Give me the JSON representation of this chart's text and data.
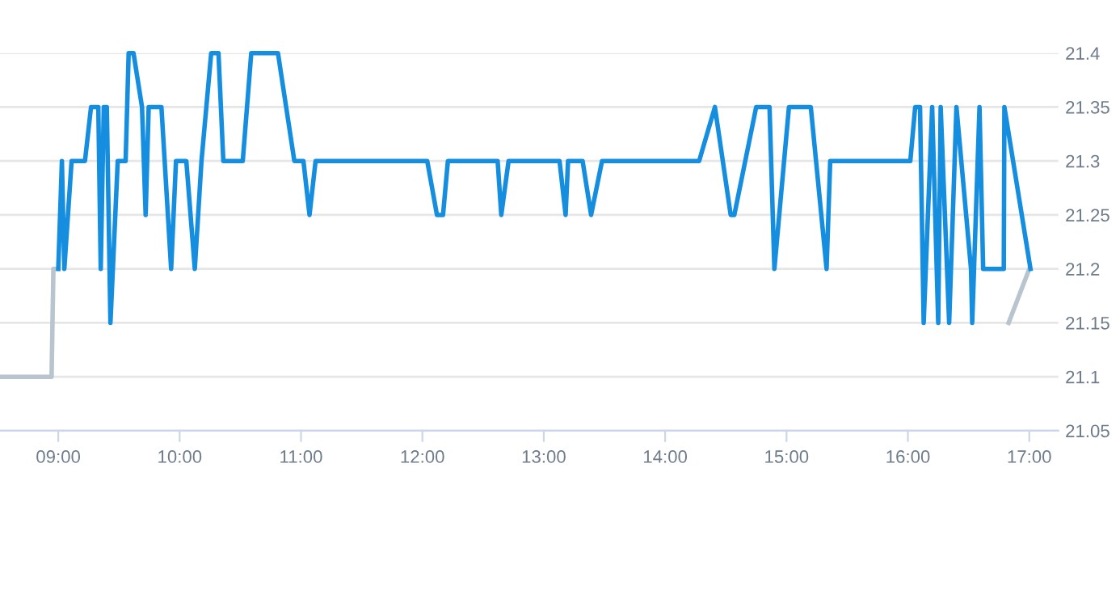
{
  "chart_data": {
    "type": "line",
    "xlim": [
      8.52,
      17.24
    ],
    "ylim": [
      21.05,
      21.4
    ],
    "xticks": [
      {
        "value": 9,
        "label": "09:00"
      },
      {
        "value": 10,
        "label": "10:00"
      },
      {
        "value": 11,
        "label": "11:00"
      },
      {
        "value": 12,
        "label": "12:00"
      },
      {
        "value": 13,
        "label": "13:00"
      },
      {
        "value": 14,
        "label": "14:00"
      },
      {
        "value": 15,
        "label": "15:00"
      },
      {
        "value": 16,
        "label": "16:00"
      },
      {
        "value": 17,
        "label": "17:00"
      }
    ],
    "yticks": [
      21.05,
      21.1,
      21.15,
      21.2,
      21.25,
      21.3,
      21.35,
      21.4
    ],
    "grid": "y",
    "marker": "none",
    "line_style": "solid",
    "series": [
      {
        "color": "#b8c4ce",
        "x": [
          8.52,
          8.945,
          8.96,
          9.0
        ],
        "values": [
          21.1,
          21.1,
          21.2,
          21.2
        ]
      },
      {
        "color": "#b8c4ce",
        "x": [
          16.83,
          17.0
        ],
        "values": [
          21.15,
          21.2
        ]
      },
      {
        "color": "#168ee0",
        "x": [
          9.0,
          9.03,
          9.05,
          9.11,
          9.22,
          9.27,
          9.33,
          9.35,
          9.375,
          9.4,
          9.43,
          9.49,
          9.555,
          9.58,
          9.62,
          9.69,
          9.72,
          9.745,
          9.85,
          9.93,
          9.97,
          10.055,
          10.125,
          10.18,
          10.26,
          10.32,
          10.36,
          10.52,
          10.59,
          10.81,
          10.945,
          11.02,
          11.07,
          11.12,
          12.04,
          12.12,
          12.17,
          12.21,
          12.62,
          12.65,
          12.71,
          13.13,
          13.18,
          13.2,
          13.32,
          13.39,
          13.48,
          14.28,
          14.41,
          14.54,
          14.57,
          14.75,
          14.86,
          14.9,
          15.02,
          15.2,
          15.33,
          15.36,
          16.02,
          16.06,
          16.1,
          16.13,
          16.2,
          16.25,
          16.27,
          16.34,
          16.4,
          16.52,
          16.53,
          16.59,
          16.62,
          16.79,
          16.795,
          17.01
        ],
        "values": [
          21.2,
          21.3,
          21.2,
          21.3,
          21.3,
          21.35,
          21.35,
          21.2,
          21.35,
          21.35,
          21.15,
          21.3,
          21.3,
          21.4,
          21.4,
          21.35,
          21.25,
          21.35,
          21.35,
          21.2,
          21.3,
          21.3,
          21.2,
          21.3,
          21.4,
          21.4,
          21.3,
          21.3,
          21.4,
          21.4,
          21.3,
          21.3,
          21.25,
          21.3,
          21.3,
          21.25,
          21.25,
          21.3,
          21.3,
          21.25,
          21.3,
          21.3,
          21.25,
          21.3,
          21.3,
          21.25,
          21.3,
          21.3,
          21.35,
          21.25,
          21.25,
          21.35,
          21.35,
          21.2,
          21.35,
          21.35,
          21.2,
          21.3,
          21.3,
          21.35,
          21.35,
          21.15,
          21.35,
          21.15,
          21.35,
          21.15,
          21.35,
          21.2,
          21.15,
          21.35,
          21.2,
          21.2,
          21.35,
          21.2
        ]
      }
    ]
  }
}
